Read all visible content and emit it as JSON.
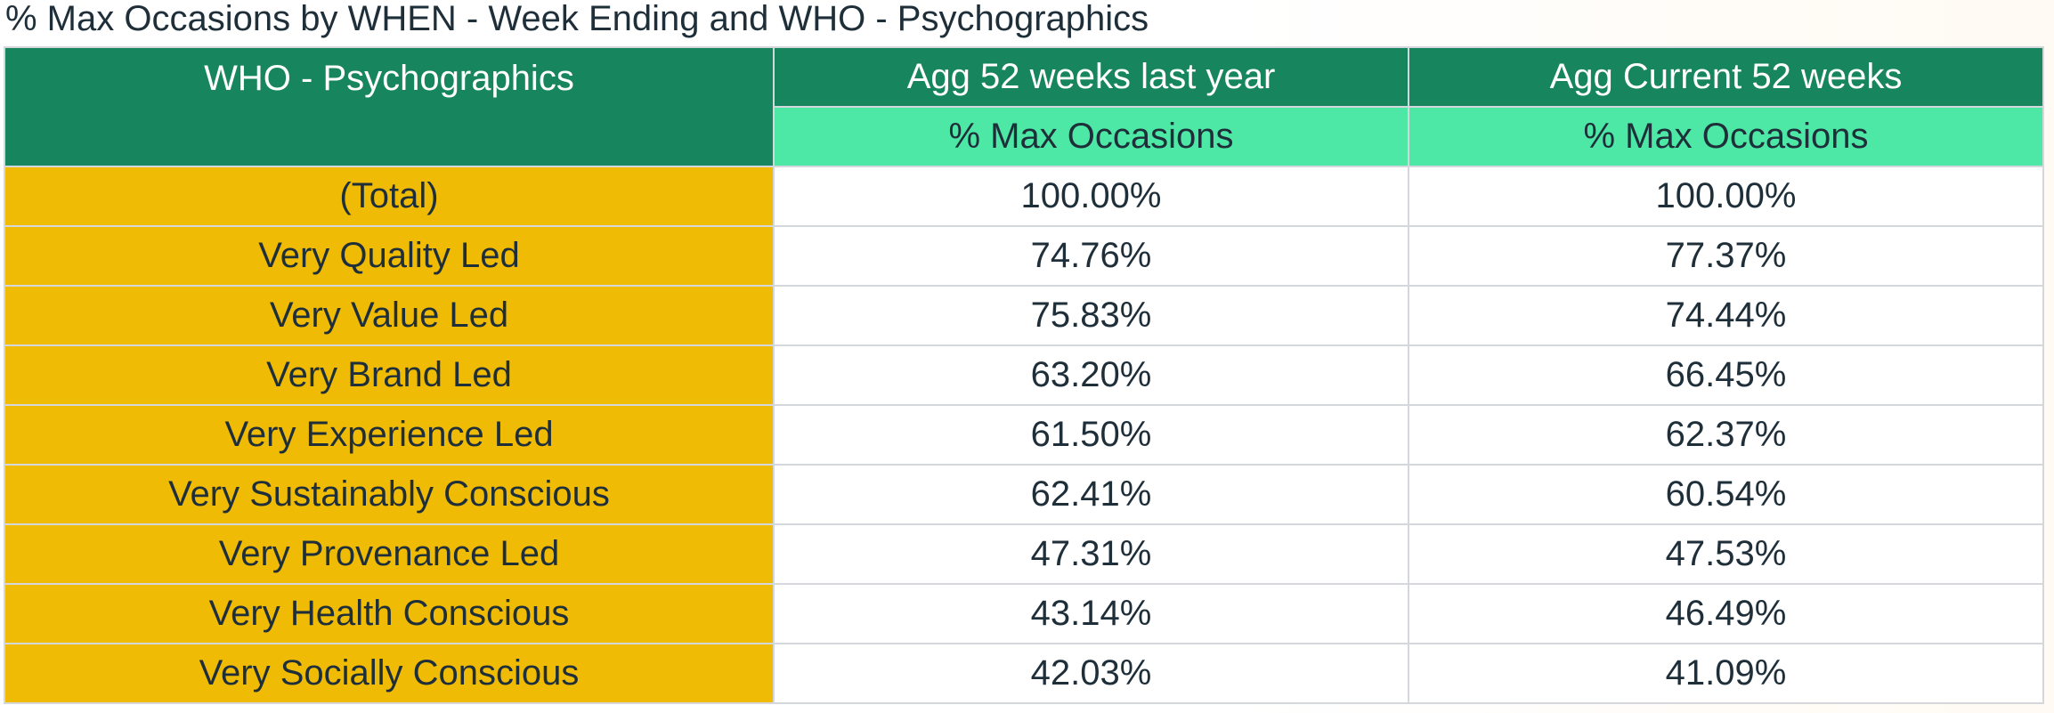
{
  "chart_data": {
    "type": "table",
    "title": "% Max Occasions by WHEN - Week Ending and WHO - Psychographics",
    "row_header": "WHO - Psychographics",
    "columns": [
      {
        "name": "Agg 52 weeks last year",
        "measure": "% Max Occasions"
      },
      {
        "name": "Agg Current 52 weeks",
        "measure": "% Max Occasions"
      }
    ],
    "rows": [
      {
        "label": "(Total)",
        "values": [
          "100.00%",
          "100.00%"
        ]
      },
      {
        "label": "Very Quality Led",
        "values": [
          "74.76%",
          "77.37%"
        ]
      },
      {
        "label": "Very Value Led",
        "values": [
          "75.83%",
          "74.44%"
        ]
      },
      {
        "label": "Very Brand Led",
        "values": [
          "63.20%",
          "66.45%"
        ]
      },
      {
        "label": "Very Experience Led",
        "values": [
          "61.50%",
          "62.37%"
        ]
      },
      {
        "label": "Very Sustainably Conscious",
        "values": [
          "62.41%",
          "60.54%"
        ]
      },
      {
        "label": "Very Provenance Led",
        "values": [
          "47.31%",
          "47.53%"
        ]
      },
      {
        "label": "Very Health Conscious",
        "values": [
          "43.14%",
          "46.49%"
        ]
      },
      {
        "label": "Very Socially Conscious",
        "values": [
          "42.03%",
          "41.09%"
        ]
      }
    ]
  },
  "colors": {
    "header_dark": "#17855e",
    "header_light": "#4de8a5",
    "row_label": "#f0bb05",
    "text": "#1f2f3a"
  }
}
